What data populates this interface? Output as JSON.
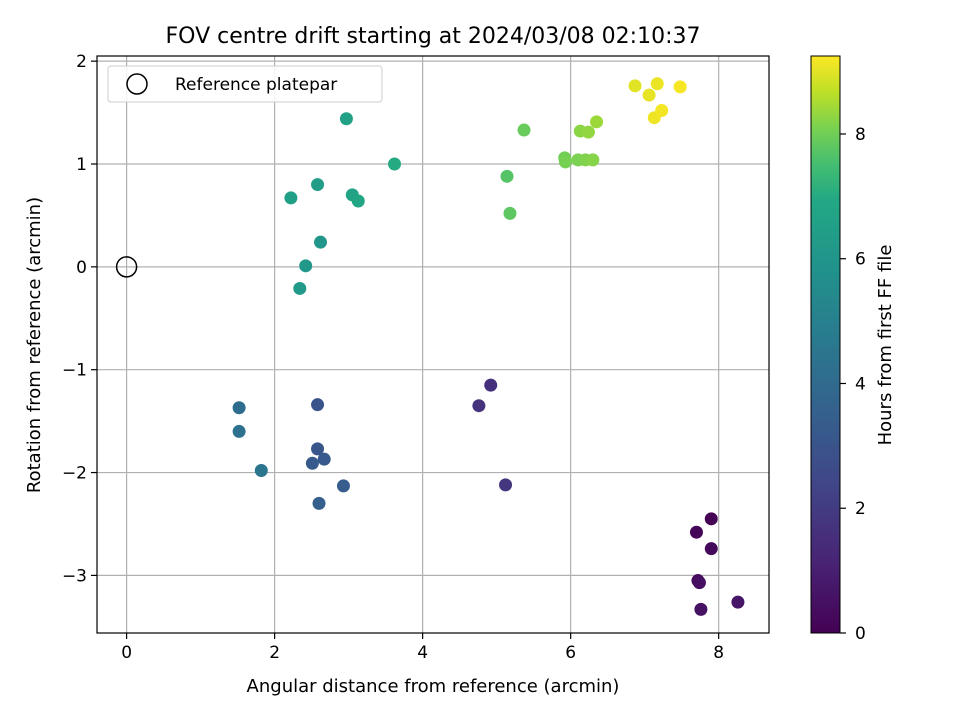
{
  "chart_data": {
    "type": "scatter",
    "title": "FOV centre drift starting at 2024/03/08 02:10:37",
    "xlabel": "Angular distance from reference (arcmin)",
    "ylabel": "Rotation from reference (arcmin)",
    "xlim": [
      -0.4,
      8.68
    ],
    "ylim": [
      -3.56,
      2.05
    ],
    "xticks": [
      0,
      2,
      4,
      6,
      8
    ],
    "yticks": [
      -3,
      -2,
      -1,
      0,
      1,
      2
    ],
    "grid": true,
    "legend": {
      "placement": "top-left",
      "entries": [
        "Reference platepar"
      ]
    },
    "reference_point": {
      "name": "Reference platepar",
      "x": 0,
      "y": 0
    },
    "colorbar": {
      "label": "Hours from first FF file",
      "colormap": "viridis",
      "range": [
        0,
        9.25
      ],
      "ticks": [
        0,
        2,
        4,
        6,
        8
      ]
    },
    "points": [
      {
        "x": 7.9,
        "y": -2.45,
        "c": 0.05
      },
      {
        "x": 7.7,
        "y": -2.58,
        "c": 0.15
      },
      {
        "x": 7.9,
        "y": -2.74,
        "c": 0.25
      },
      {
        "x": 7.72,
        "y": -3.05,
        "c": 0.35
      },
      {
        "x": 7.74,
        "y": -3.07,
        "c": 0.45
      },
      {
        "x": 7.76,
        "y": -3.33,
        "c": 0.55
      },
      {
        "x": 8.26,
        "y": -3.26,
        "c": 0.65
      },
      {
        "x": 4.92,
        "y": -1.15,
        "c": 1.6
      },
      {
        "x": 4.76,
        "y": -1.35,
        "c": 1.7
      },
      {
        "x": 5.12,
        "y": -2.12,
        "c": 1.8
      },
      {
        "x": 2.58,
        "y": -1.34,
        "c": 3.0
      },
      {
        "x": 2.58,
        "y": -1.77,
        "c": 3.1
      },
      {
        "x": 2.67,
        "y": -1.87,
        "c": 3.2
      },
      {
        "x": 2.51,
        "y": -1.91,
        "c": 3.3
      },
      {
        "x": 2.93,
        "y": -2.13,
        "c": 3.4
      },
      {
        "x": 2.6,
        "y": -2.3,
        "c": 3.5
      },
      {
        "x": 1.52,
        "y": -1.37,
        "c": 4.1
      },
      {
        "x": 1.52,
        "y": -1.6,
        "c": 4.3
      },
      {
        "x": 1.82,
        "y": -1.98,
        "c": 4.5
      },
      {
        "x": 2.62,
        "y": 0.24,
        "c": 6.05
      },
      {
        "x": 2.42,
        "y": 0.01,
        "c": 6.15
      },
      {
        "x": 2.34,
        "y": -0.21,
        "c": 6.25
      },
      {
        "x": 2.58,
        "y": 0.8,
        "c": 6.4
      },
      {
        "x": 2.22,
        "y": 0.67,
        "c": 6.5
      },
      {
        "x": 2.97,
        "y": 1.44,
        "c": 6.6
      },
      {
        "x": 3.05,
        "y": 0.7,
        "c": 6.7
      },
      {
        "x": 3.13,
        "y": 0.64,
        "c": 6.8
      },
      {
        "x": 3.62,
        "y": 1.0,
        "c": 7.0
      },
      {
        "x": 5.14,
        "y": 0.88,
        "c": 7.7
      },
      {
        "x": 5.18,
        "y": 0.52,
        "c": 7.8
      },
      {
        "x": 5.37,
        "y": 1.33,
        "c": 7.9
      },
      {
        "x": 5.92,
        "y": 1.06,
        "c": 8.0
      },
      {
        "x": 5.93,
        "y": 1.02,
        "c": 8.05
      },
      {
        "x": 6.1,
        "y": 1.04,
        "c": 8.1
      },
      {
        "x": 6.2,
        "y": 1.04,
        "c": 8.15
      },
      {
        "x": 6.3,
        "y": 1.04,
        "c": 8.2
      },
      {
        "x": 6.13,
        "y": 1.32,
        "c": 8.25
      },
      {
        "x": 6.24,
        "y": 1.31,
        "c": 8.3
      },
      {
        "x": 6.35,
        "y": 1.41,
        "c": 8.4
      },
      {
        "x": 6.87,
        "y": 1.76,
        "c": 9.0
      },
      {
        "x": 7.06,
        "y": 1.67,
        "c": 9.05
      },
      {
        "x": 7.17,
        "y": 1.78,
        "c": 9.1
      },
      {
        "x": 7.13,
        "y": 1.45,
        "c": 9.12
      },
      {
        "x": 7.23,
        "y": 1.52,
        "c": 9.15
      },
      {
        "x": 7.48,
        "y": 1.75,
        "c": 9.2
      }
    ]
  }
}
